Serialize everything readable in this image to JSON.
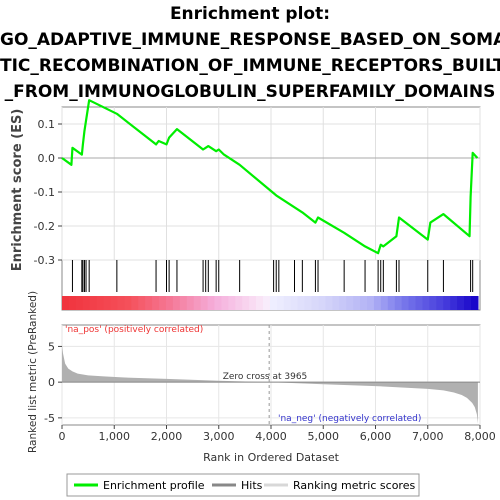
{
  "title_lines": [
    "Enrichment plot:",
    "GO_ADAPTIVE_IMMUNE_RESPONSE_BASED_ON_SOMA",
    "TIC_RECOMBINATION_OF_IMMUNE_RECEPTORS_BUILT",
    "_FROM_IMMUNOGLOBULIN_SUPERFAMILY_DOMAINS"
  ],
  "chart_data": {
    "type": "line",
    "title": "Enrichment plot: GO_ADAPTIVE_IMMUNE_RESPONSE_BASED_ON_SOMATIC_RECOMBINATION_OF_IMMUNE_RECEPTORS_BUILT_FROM_IMMUNOGLOBULIN_SUPERFAMILY_DOMAINS",
    "xlabel": "Rank in Ordered Dataset",
    "es_ylabel": "Enrichment score (ES)",
    "metric_ylabel": "Ranked list metric (PreRanked)",
    "xlim": [
      0,
      8000
    ],
    "x_ticks": [
      0,
      1000,
      2000,
      3000,
      4000,
      5000,
      6000,
      7000,
      8000
    ],
    "es_ylim": [
      -0.3,
      0.15
    ],
    "es_ticks": [
      -0.3,
      -0.2,
      -0.1,
      0.0,
      0.1
    ],
    "metric_ylim": [
      -6,
      8
    ],
    "metric_ticks": [
      -5,
      0,
      5
    ],
    "es_curve": {
      "x": [
        0,
        180,
        200,
        380,
        400,
        430,
        460,
        520,
        1050,
        1800,
        1850,
        2000,
        2050,
        2200,
        2700,
        2750,
        2800,
        2950,
        3000,
        3100,
        3400,
        4100,
        4600,
        4850,
        4900,
        5400,
        5800,
        6050,
        6100,
        6150,
        6400,
        6450,
        7000,
        7050,
        7300,
        7800,
        7820,
        7860,
        7950
      ],
      "y": [
        0.0,
        -0.02,
        0.03,
        0.01,
        0.04,
        0.08,
        0.11,
        0.17,
        0.13,
        0.04,
        0.05,
        0.04,
        0.06,
        0.085,
        0.025,
        0.03,
        0.035,
        0.02,
        0.025,
        0.01,
        -0.02,
        -0.11,
        -0.16,
        -0.19,
        -0.175,
        -0.22,
        -0.26,
        -0.28,
        -0.255,
        -0.26,
        -0.23,
        -0.175,
        -0.24,
        -0.19,
        -0.165,
        -0.23,
        -0.115,
        0.015,
        0.0
      ]
    },
    "hits": [
      200,
      380,
      400,
      430,
      460,
      520,
      1050,
      1800,
      2000,
      2050,
      2200,
      2700,
      2750,
      2800,
      2950,
      3000,
      3400,
      4050,
      4100,
      4150,
      4450,
      4600,
      4850,
      4900,
      5400,
      5800,
      6050,
      6100,
      6150,
      6400,
      6450,
      7000,
      7300,
      7820,
      7860
    ],
    "zero_cross": 3965,
    "zero_cross_label": "Zero cross at 3965",
    "pos_label": "'na_pos' (positively correlated)",
    "neg_label": "'na_neg' (negatively correlated)",
    "metric_curve": {
      "x": [
        0,
        20,
        60,
        120,
        200,
        300,
        500,
        800,
        1200,
        2000,
        3000,
        3965,
        5000,
        6000,
        6500,
        7000,
        7300,
        7500,
        7650,
        7750,
        7850,
        7900,
        7940,
        7960
      ],
      "y": [
        5.2,
        4.0,
        2.6,
        1.9,
        1.5,
        1.2,
        0.95,
        0.8,
        0.65,
        0.45,
        0.2,
        0.0,
        -0.3,
        -0.55,
        -0.75,
        -0.95,
        -1.15,
        -1.45,
        -1.8,
        -2.2,
        -2.9,
        -3.5,
        -4.5,
        -5.8
      ]
    },
    "legend": [
      "Enrichment profile",
      "Hits",
      "Ranking metric scores"
    ],
    "colors": {
      "es_line": "#00ee00",
      "hits": "#000000",
      "metric_fill": "#b0b0b0",
      "pos_text": "#ee3333",
      "neg_text": "#3333cc",
      "axis_label": "#444444"
    }
  }
}
